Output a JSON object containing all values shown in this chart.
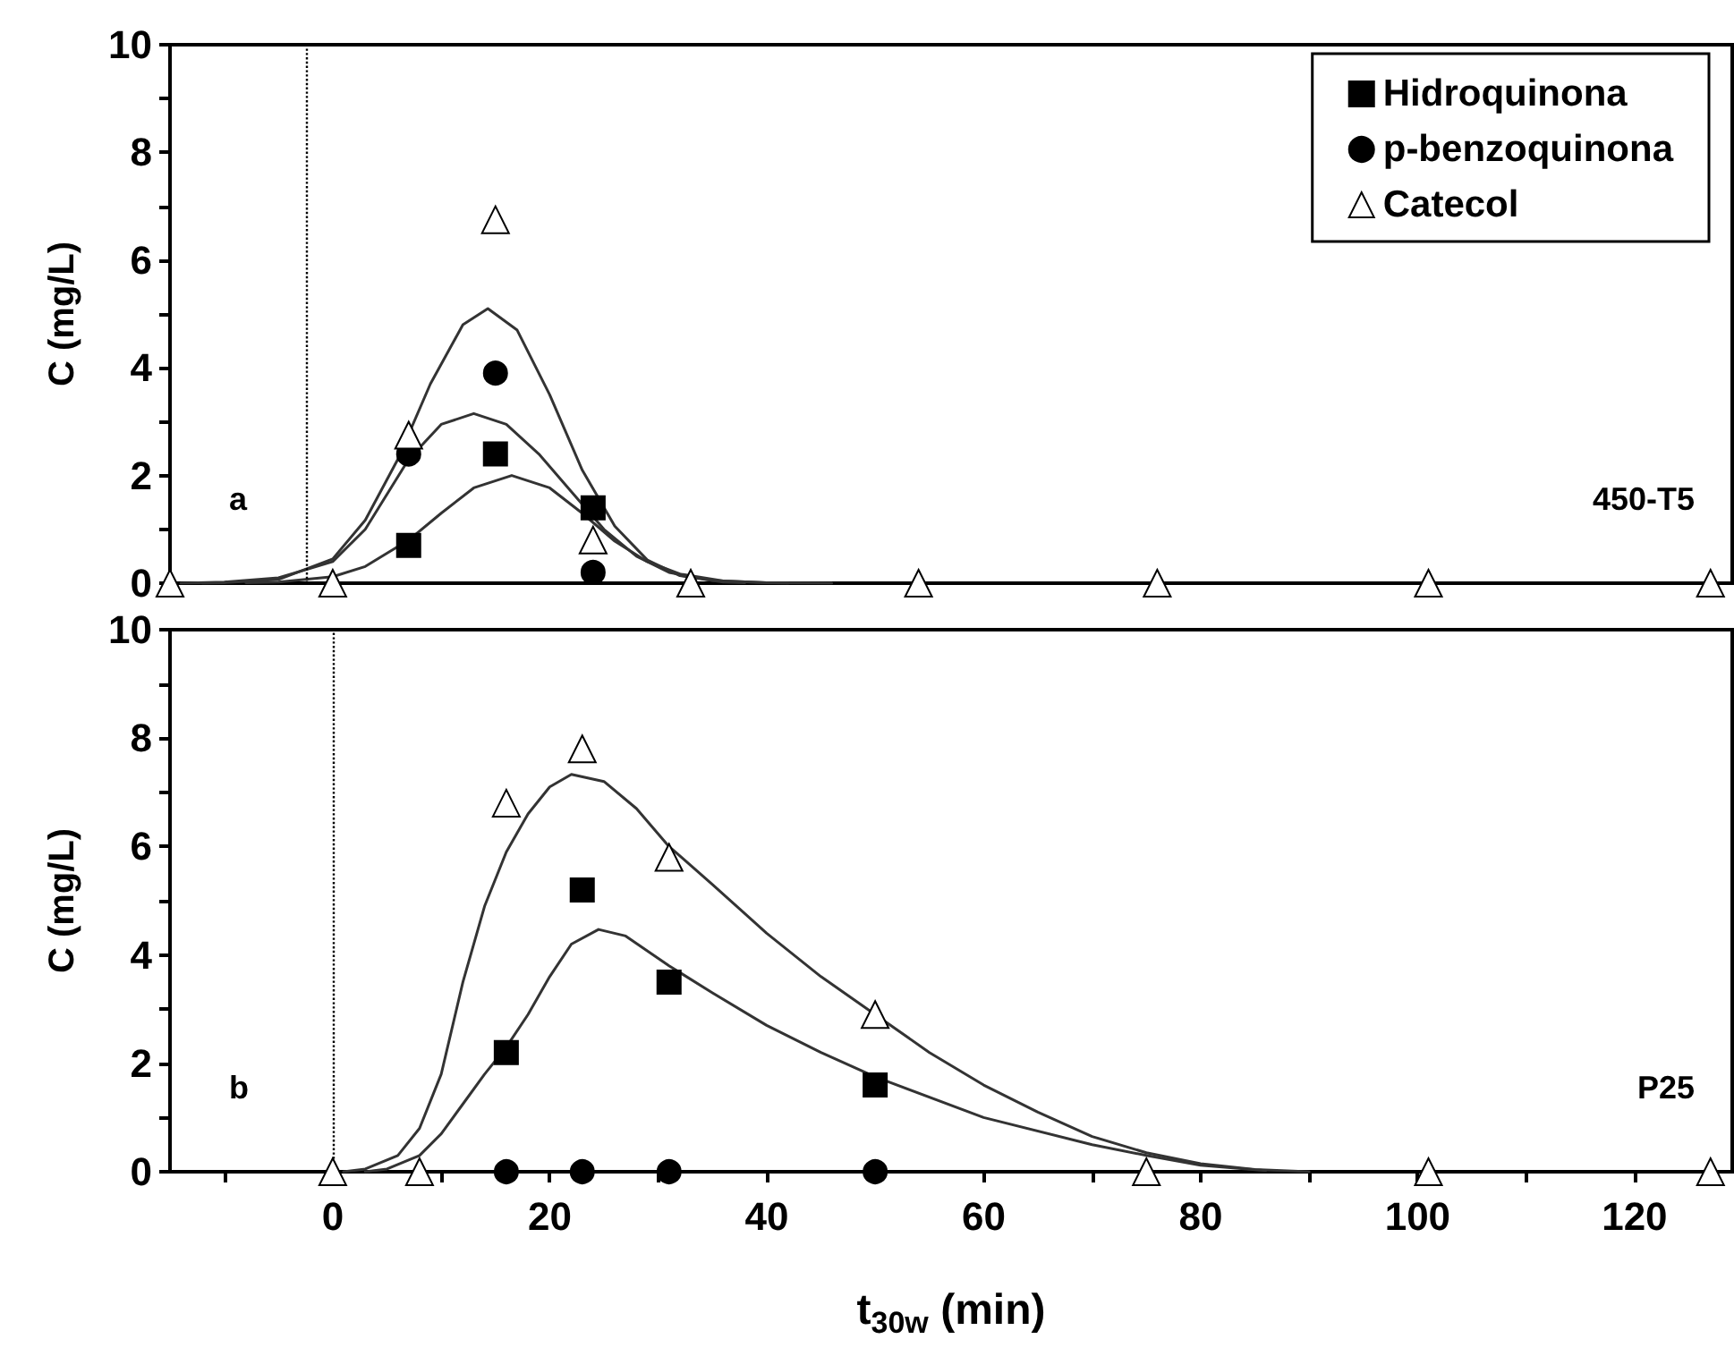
{
  "chart_data": [
    {
      "type": "scatter",
      "ylabel": "C (mg/L)",
      "xlim": [
        -15,
        129
      ],
      "ylim": [
        0,
        10
      ],
      "yticks": [
        0,
        {
          "value": 1,
          "label": null
        },
        2,
        {
          "value": 3,
          "label": null
        },
        4,
        {
          "value": 5,
          "label": null
        },
        6,
        {
          "value": 7,
          "label": null
        },
        8,
        {
          "value": 9,
          "label": null
        },
        10
      ],
      "tick_labels": "y",
      "grid": false,
      "legend": "top right",
      "annotations": [
        "a",
        "450-T5"
      ],
      "ref_lines": [
        {
          "axis": "x",
          "value": -2.5,
          "label": null,
          "color": "#000000",
          "line_style": "dotted"
        }
      ],
      "series": [
        {
          "type": "line",
          "color": "#333333",
          "marker": "none",
          "line_style": "solid",
          "x": [
            -12,
            -10,
            -5,
            0,
            3,
            6,
            9,
            12,
            14.3,
            17,
            20,
            23,
            26,
            29,
            32,
            36,
            38
          ],
          "values": [
            0,
            0.01,
            0.07,
            0.45,
            1.17,
            2.3,
            3.7,
            4.8,
            5.1,
            4.7,
            3.5,
            2.1,
            1.06,
            0.43,
            0.14,
            0.02,
            0.01
          ]
        },
        {
          "type": "line",
          "color": "#333333",
          "marker": "none",
          "line_style": "solid",
          "x": [
            -14,
            -10,
            -5,
            0,
            3,
            7,
            10,
            13,
            16,
            19,
            22,
            25,
            28,
            31,
            35,
            40,
            42
          ],
          "values": [
            0,
            0.02,
            0.1,
            0.4,
            1.0,
            2.3,
            2.95,
            3.15,
            2.95,
            2.4,
            1.7,
            1.0,
            0.5,
            0.2,
            0.05,
            0.01,
            0
          ]
        },
        {
          "type": "line",
          "color": "#333333",
          "marker": "none",
          "line_style": "solid",
          "x": [
            -8,
            -5,
            0,
            3,
            7,
            10,
            13,
            16.5,
            20,
            23,
            26,
            29,
            32,
            36,
            40,
            46
          ],
          "values": [
            0.01,
            0.02,
            0.12,
            0.31,
            0.8,
            1.3,
            1.77,
            2.0,
            1.77,
            1.3,
            0.78,
            0.4,
            0.17,
            0.04,
            0.01,
            0
          ]
        },
        {
          "name": "Hidroquinona",
          "color": "#000000",
          "marker": "square",
          "x": [
            7,
            15,
            24
          ],
          "values": [
            0.7,
            2.4,
            1.4
          ]
        },
        {
          "name": "p-benzoquinona",
          "color": "#000000",
          "marker": "circle",
          "x": [
            7,
            15,
            24
          ],
          "values": [
            2.4,
            3.9,
            0.2
          ]
        },
        {
          "name": "Catecol",
          "color": "#ffffff",
          "marker": "triangle",
          "x": [
            -15,
            0,
            7,
            15,
            24,
            33,
            54,
            76,
            101,
            127
          ],
          "values": [
            0,
            0,
            2.75,
            6.75,
            0.8,
            0,
            0,
            0,
            0,
            0
          ]
        }
      ]
    },
    {
      "type": "scatter",
      "ylabel": "C (mg/L)",
      "xlabel": "t$_{30w}$ (min)",
      "xlim": [
        -15,
        129
      ],
      "ylim": [
        0,
        10
      ],
      "xticks": [
        {
          "value": -10,
          "label": null
        },
        0,
        {
          "value": 10,
          "label": null
        },
        20,
        {
          "value": 30,
          "label": null
        },
        40,
        {
          "value": 50,
          "label": null
        },
        60,
        {
          "value": 70,
          "label": null
        },
        80,
        {
          "value": 90,
          "label": null
        },
        100,
        {
          "value": 110,
          "label": null
        },
        120
      ],
      "yticks": [
        0,
        {
          "value": 1,
          "label": null
        },
        2,
        {
          "value": 3,
          "label": null
        },
        4,
        {
          "value": 5,
          "label": null
        },
        6,
        {
          "value": 7,
          "label": null
        },
        8,
        {
          "value": 9,
          "label": null
        },
        10
      ],
      "grid": false,
      "annotations": [
        "b",
        "P25"
      ],
      "ref_lines": [
        {
          "axis": "x",
          "value": 0,
          "label": null,
          "color": "#000000",
          "line_style": "dotted"
        }
      ],
      "series": [
        {
          "type": "line",
          "color": "#333333",
          "marker": "none",
          "line_style": "solid",
          "x": [
            1,
            3,
            6,
            8,
            10,
            12,
            14,
            16,
            18,
            20,
            22,
            25,
            28,
            31,
            35,
            40,
            45,
            50,
            55,
            60,
            65,
            70,
            75,
            80,
            85,
            90
          ],
          "values": [
            0,
            0.05,
            0.3,
            0.8,
            1.8,
            3.5,
            4.9,
            5.9,
            6.6,
            7.1,
            7.33,
            7.2,
            6.7,
            6.0,
            5.3,
            4.4,
            3.6,
            2.9,
            2.2,
            1.6,
            1.1,
            0.65,
            0.35,
            0.15,
            0.04,
            0
          ]
        },
        {
          "type": "line",
          "color": "#333333",
          "marker": "none",
          "line_style": "solid",
          "x": [
            3,
            5,
            8,
            10,
            12,
            14,
            16,
            18,
            20,
            22,
            24.5,
            27,
            31,
            35,
            40,
            45,
            50,
            60,
            70,
            75,
            80,
            86
          ],
          "values": [
            0,
            0.05,
            0.3,
            0.7,
            1.25,
            1.8,
            2.3,
            2.9,
            3.6,
            4.2,
            4.47,
            4.35,
            3.8,
            3.3,
            2.7,
            2.2,
            1.75,
            1.0,
            0.5,
            0.3,
            0.12,
            0.02
          ]
        },
        {
          "color": "#000000",
          "marker": "square",
          "x": [
            16,
            23,
            31,
            50
          ],
          "values": [
            2.2,
            5.2,
            3.5,
            1.6
          ]
        },
        {
          "color": "#000000",
          "marker": "circle",
          "x": [
            16,
            23,
            31,
            50
          ],
          "values": [
            0,
            0,
            0,
            0
          ]
        },
        {
          "color": "#ffffff",
          "marker": "triangle",
          "x": [
            0,
            8,
            16,
            23,
            31,
            50,
            75,
            101,
            127
          ],
          "values": [
            0,
            0,
            6.8,
            7.8,
            5.8,
            2.9,
            0,
            0,
            0
          ]
        }
      ]
    }
  ]
}
